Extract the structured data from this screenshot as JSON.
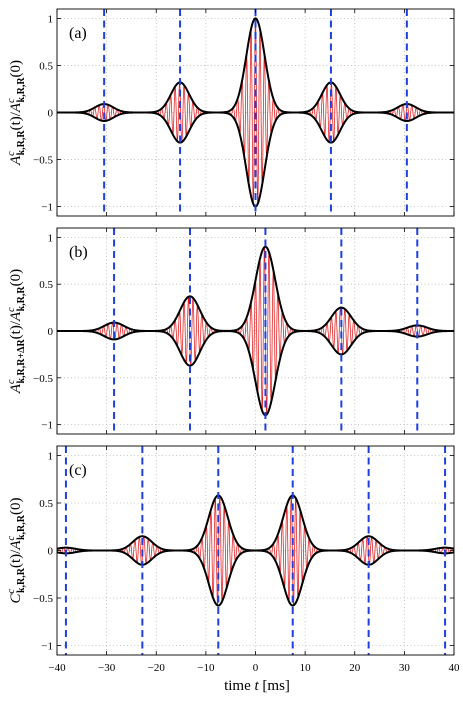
{
  "chart_data": [
    {
      "type": "line",
      "tag": "(a)",
      "ylabel": "A^c_{k,R,R}(t)/A^c_{k,R,R}(0)",
      "ylabel_parts": {
        "main": "A",
        "sup": "c",
        "sub": "k,R,R",
        "mid": "(t)/",
        "main2": "A",
        "sup2": "c",
        "sub2": "k,R,R",
        "end": "(0)"
      },
      "xlim": [
        -40,
        40
      ],
      "ylim": [
        -1.1,
        1.1
      ],
      "yticks": [
        -1,
        -0.5,
        0,
        0.5,
        1
      ],
      "ytick_labels": [
        "−1",
        "−0.5",
        "0",
        "0.5",
        "1"
      ],
      "grid": true,
      "envelope_peaks": [
        {
          "t": -30.5,
          "amp": 0.09,
          "width": 2.6
        },
        {
          "t": -15.2,
          "amp": 0.32,
          "width": 2.6
        },
        {
          "t": 0.0,
          "amp": 1.0,
          "width": 2.6
        },
        {
          "t": 15.2,
          "amp": 0.32,
          "width": 2.6
        },
        {
          "t": 30.5,
          "amp": 0.09,
          "width": 2.6
        }
      ],
      "carrier_period": 0.9,
      "vlines": [
        -30.5,
        -15.2,
        0.0,
        15.2,
        30.5
      ],
      "colors": {
        "envelope": "#000000",
        "signal": "#e41a1c",
        "vline": "#1f3fe0"
      }
    },
    {
      "type": "line",
      "tag": "(b)",
      "ylabel": "A^c_{k,R,R+ΔR}(t)/A^c_{k,R,R}(0)",
      "ylabel_parts": {
        "main": "A",
        "sup": "c",
        "sub": "k,R,R+ΔR",
        "mid": "(t)/",
        "main2": "A",
        "sup2": "c",
        "sub2": "k,R,R",
        "end": "(0)"
      },
      "xlim": [
        -40,
        40
      ],
      "ylim": [
        -1.1,
        1.1
      ],
      "yticks": [
        -1,
        -0.5,
        0,
        0.5,
        1
      ],
      "ytick_labels": [
        "−1",
        "−0.5",
        "0",
        "0.5",
        "1"
      ],
      "grid": true,
      "envelope_peaks": [
        {
          "t": -28.5,
          "amp": 0.09,
          "width": 2.8
        },
        {
          "t": -13.2,
          "amp": 0.37,
          "width": 2.8
        },
        {
          "t": 2.0,
          "amp": 0.9,
          "width": 2.8
        },
        {
          "t": 17.3,
          "amp": 0.25,
          "width": 2.8
        },
        {
          "t": 32.6,
          "amp": 0.06,
          "width": 2.8
        }
      ],
      "carrier_period": 0.9,
      "vlines": [
        -28.5,
        -13.2,
        2.0,
        17.3,
        32.6
      ],
      "colors": {
        "envelope": "#000000",
        "signal": "#e41a1c",
        "vline": "#1f3fe0"
      }
    },
    {
      "type": "line",
      "tag": "(c)",
      "ylabel": "C^c_{k,R,R}(t)/A^c_{k,R,R}(0)",
      "ylabel_parts": {
        "main": "C",
        "sup": "c",
        "sub": "k,R,R",
        "mid": "(t)/",
        "main2": "A",
        "sup2": "c",
        "sub2": "k,R,R",
        "end": "(0)"
      },
      "xlim": [
        -40,
        40
      ],
      "ylim": [
        -1.1,
        1.1
      ],
      "yticks": [
        -1,
        -0.5,
        0,
        0.5,
        1
      ],
      "ytick_labels": [
        "−1",
        "−0.5",
        "0",
        "0.5",
        "1"
      ],
      "grid": true,
      "envelope_peaks": [
        {
          "t": -38.2,
          "amp": 0.03,
          "width": 2.7
        },
        {
          "t": -22.8,
          "amp": 0.15,
          "width": 2.7
        },
        {
          "t": -7.5,
          "amp": 0.58,
          "width": 2.7
        },
        {
          "t": 7.5,
          "amp": 0.58,
          "width": 2.7
        },
        {
          "t": 22.8,
          "amp": 0.15,
          "width": 2.7
        },
        {
          "t": 38.2,
          "amp": 0.03,
          "width": 2.7
        }
      ],
      "carrier_period": 0.9,
      "vlines": [
        -38.2,
        -22.8,
        -7.5,
        7.5,
        22.8,
        38.2
      ],
      "colors": {
        "envelope": "#000000",
        "signal": "#e41a1c",
        "vline": "#1f3fe0"
      }
    }
  ],
  "xticks": [
    -40,
    -30,
    -20,
    -10,
    0,
    10,
    20,
    30,
    40
  ],
  "xtick_labels": [
    "−40",
    "−30",
    "−20",
    "−10",
    "0",
    "10",
    "20",
    "30",
    "40"
  ],
  "xlabel_parts": {
    "pre": "time ",
    "var": "t",
    "post": " [ms]"
  }
}
